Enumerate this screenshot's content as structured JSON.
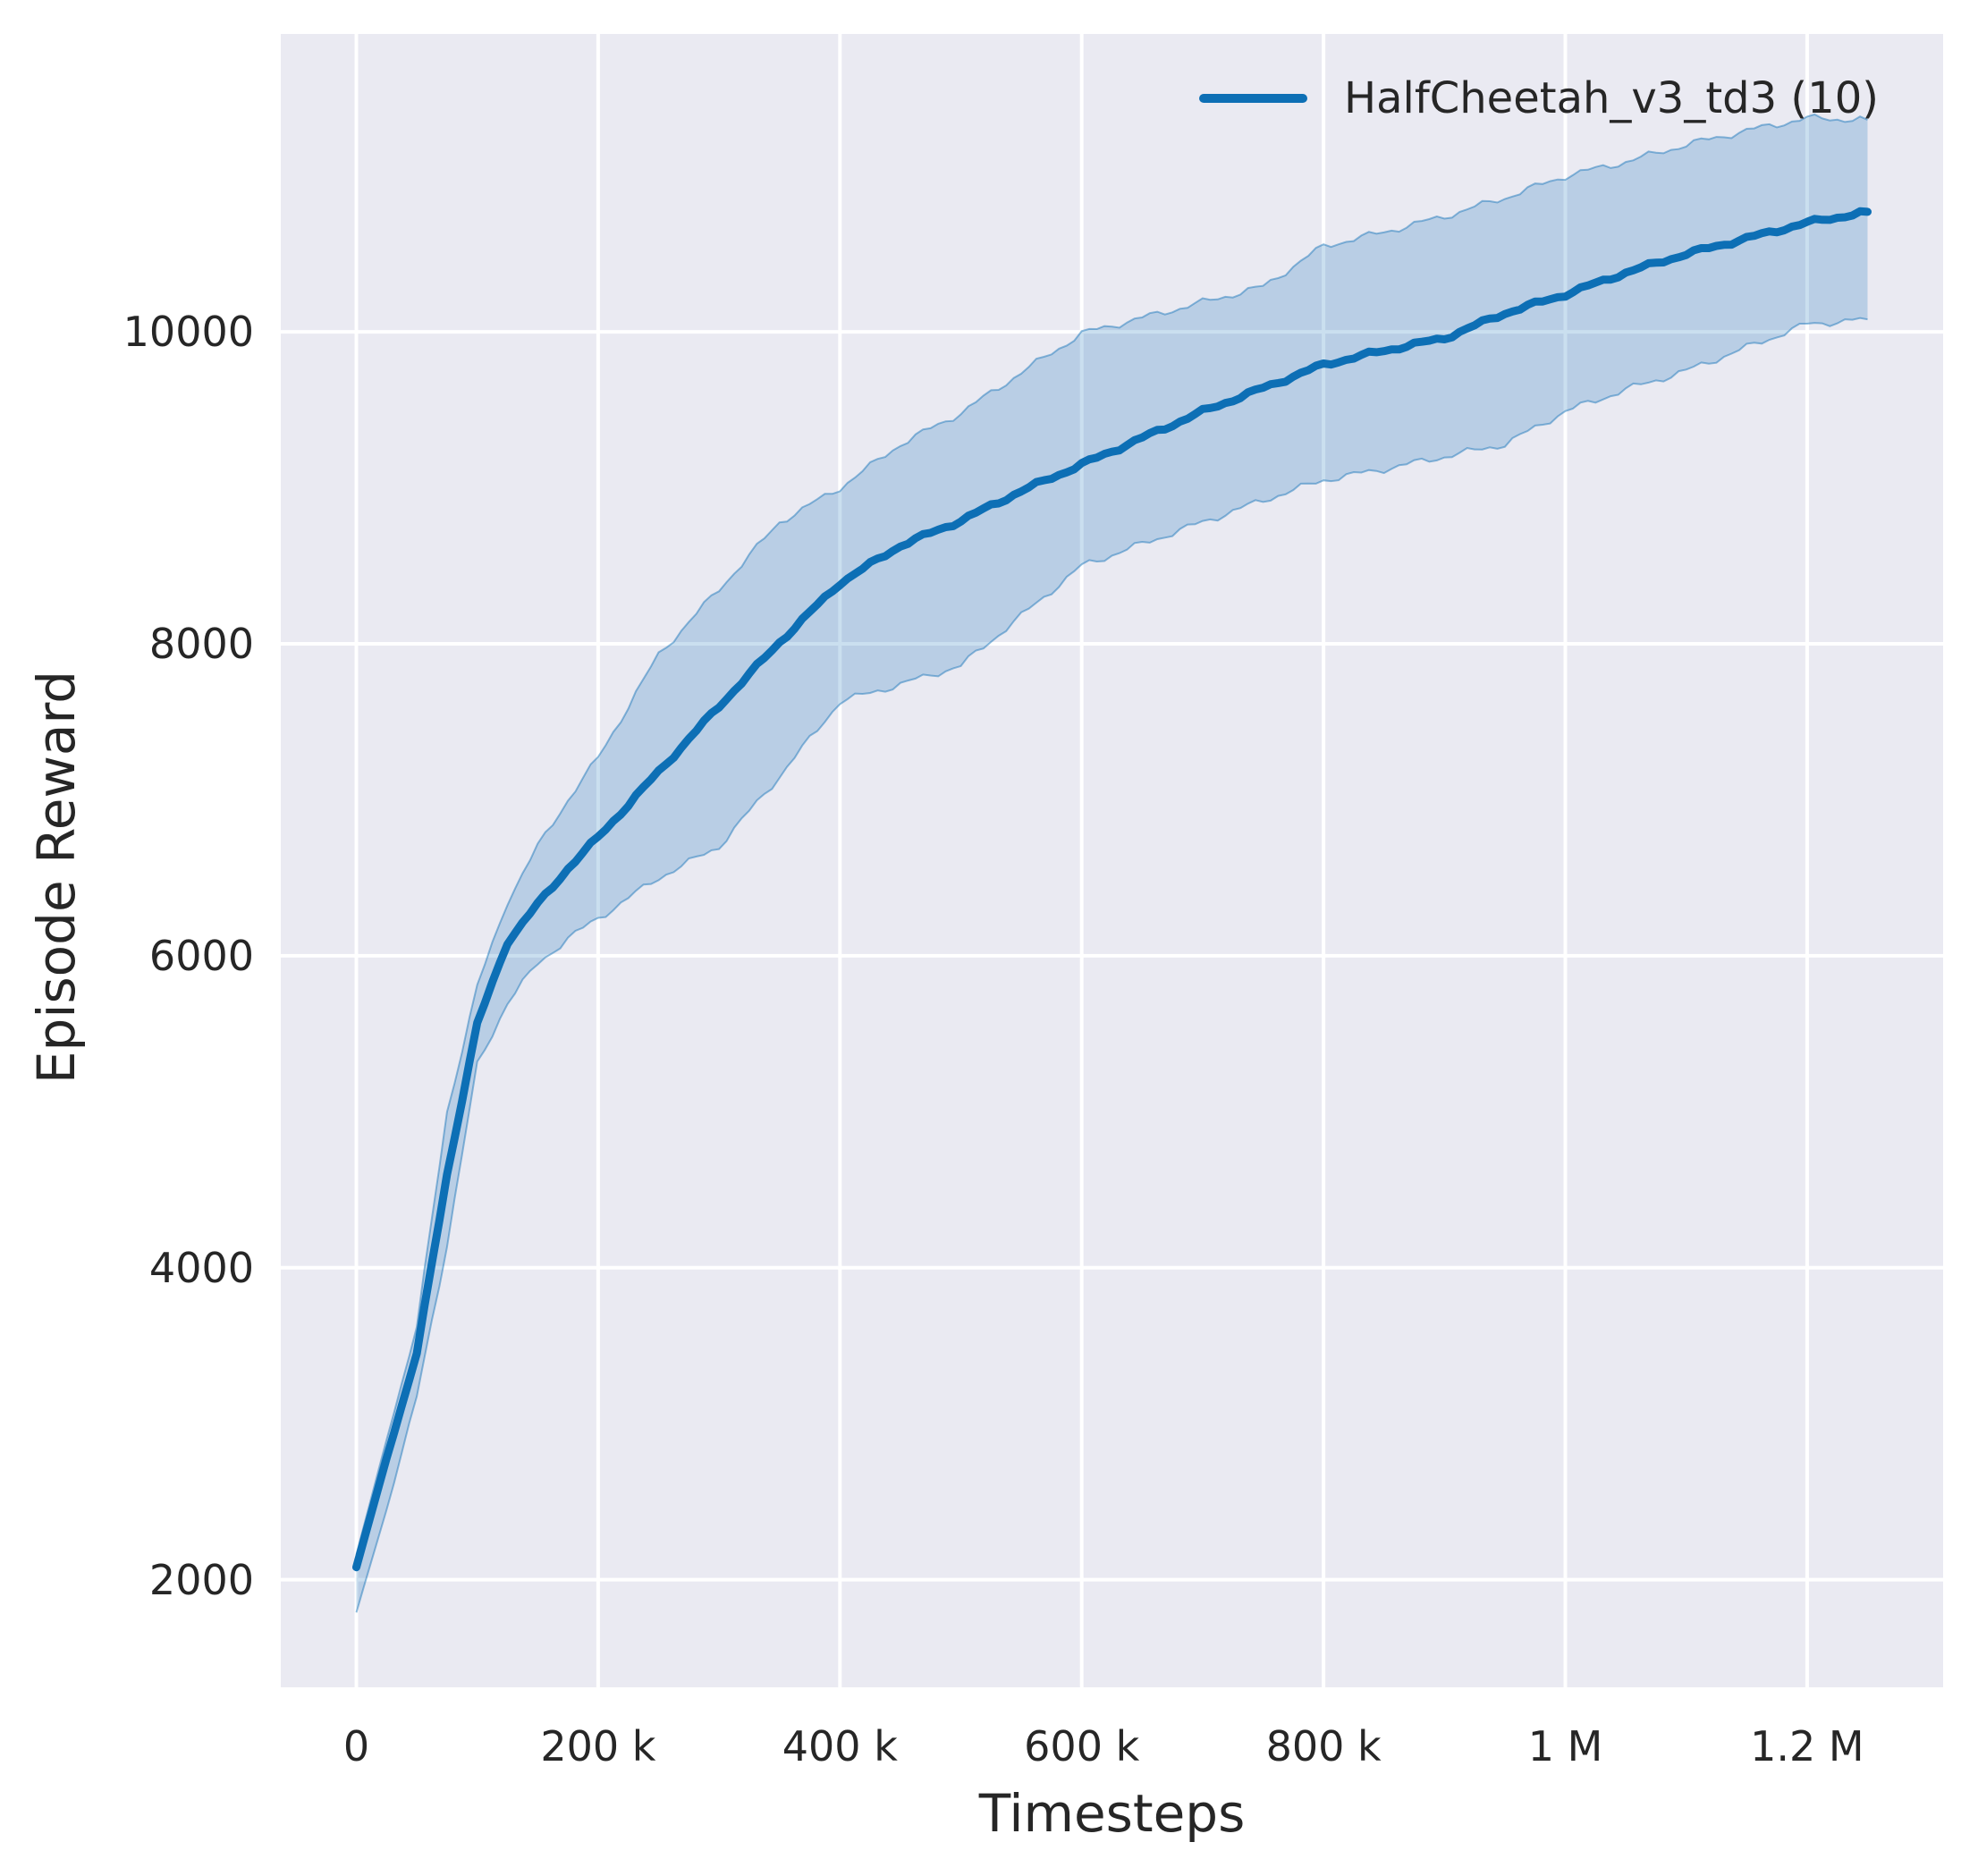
{
  "style": {
    "figure_bg": "#ffffff",
    "axes_bg": "#eaeaf2",
    "grid_color": "#ffffff",
    "line_color": "#0d6fb5",
    "band_fill_rgb": "13,111,181",
    "band_fill_alpha": 0.22,
    "band_edge_alpha": 0.45,
    "text_color": "#262626"
  },
  "chart_data": {
    "type": "line",
    "title": "",
    "xlabel": "Timesteps",
    "ylabel": "Episode Reward",
    "legend_position": "upper right",
    "grid": true,
    "legend": [
      {
        "label": "HalfCheetah_v3_td3 (10)",
        "color": "#0d6fb5"
      }
    ],
    "xlim": [
      -62500,
      1312500
    ],
    "ylim": [
      1310,
      11910
    ],
    "xticks": [
      {
        "value": 0,
        "label": "0"
      },
      {
        "value": 200000,
        "label": "200 k"
      },
      {
        "value": 400000,
        "label": "400 k"
      },
      {
        "value": 600000,
        "label": "600 k"
      },
      {
        "value": 800000,
        "label": "800 k"
      },
      {
        "value": 1000000,
        "label": "1 M"
      },
      {
        "value": 1200000,
        "label": "1.2 M"
      }
    ],
    "yticks": [
      {
        "value": 2000,
        "label": "2000"
      },
      {
        "value": 4000,
        "label": "4000"
      },
      {
        "value": 6000,
        "label": "6000"
      },
      {
        "value": 8000,
        "label": "8000"
      },
      {
        "value": 10000,
        "label": "10000"
      }
    ],
    "x": [
      0,
      25000,
      50000,
      75000,
      100000,
      125000,
      150000,
      175000,
      200000,
      250000,
      300000,
      350000,
      400000,
      450000,
      500000,
      550000,
      600000,
      650000,
      700000,
      750000,
      800000,
      850000,
      900000,
      950000,
      1000000,
      1050000,
      1100000,
      1150000,
      1200000,
      1250000
    ],
    "series": [
      {
        "name": "HalfCheetah_v3_td3 (10) mean",
        "values": [
          2080,
          2780,
          3450,
          4600,
          5560,
          6090,
          6330,
          6560,
          6760,
          7180,
          7600,
          8010,
          8390,
          8630,
          8790,
          8980,
          9150,
          9320,
          9490,
          9640,
          9790,
          9880,
          9960,
          10120,
          10240,
          10380,
          10500,
          10600,
          10700,
          10770
        ]
      },
      {
        "name": "ci_lower",
        "values": [
          1790,
          2450,
          3170,
          4150,
          5300,
          5700,
          5950,
          6110,
          6240,
          6500,
          6700,
          7150,
          7630,
          7740,
          7860,
          8180,
          8500,
          8640,
          8780,
          8920,
          9050,
          9120,
          9200,
          9280,
          9490,
          9630,
          9750,
          9900,
          10050,
          10080
        ]
      },
      {
        "name": "ci_upper",
        "values": [
          2160,
          2900,
          3620,
          5000,
          5800,
          6350,
          6700,
          7000,
          7270,
          7930,
          8350,
          8780,
          9000,
          9280,
          9480,
          9740,
          9990,
          10090,
          10190,
          10290,
          10550,
          10640,
          10740,
          10860,
          11000,
          11090,
          11200,
          11290,
          11370,
          11360
        ]
      }
    ]
  }
}
